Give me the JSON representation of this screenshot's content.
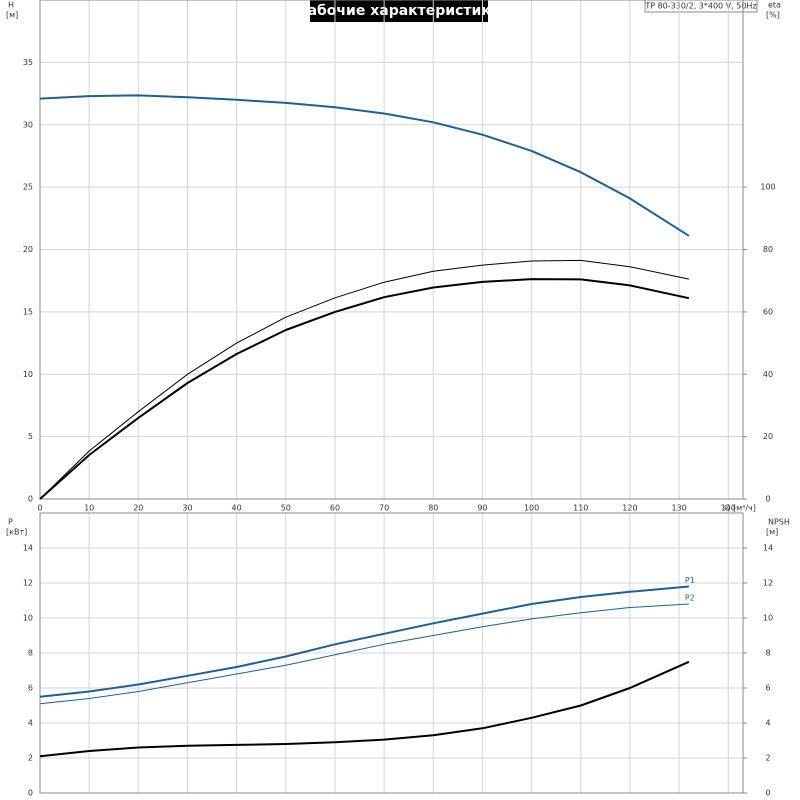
{
  "chart_data": [
    {
      "type": "line",
      "title": "Рабочие характеристики",
      "annotation": "TP 80-330/2, 3*400 V, 50Hz",
      "ylabel": "H",
      "yunit": "[м]",
      "y2label": "eta",
      "y2unit": "[%]",
      "xlabel": "Q [м³/ч]",
      "x": [
        0,
        10,
        20,
        30,
        40,
        50,
        60,
        70,
        80,
        90,
        100,
        110,
        120,
        132
      ],
      "xlim": [
        0,
        143
      ],
      "xticks": [
        0,
        10,
        20,
        30,
        40,
        50,
        60,
        70,
        80,
        90,
        100,
        110,
        120,
        130,
        140
      ],
      "ylim": [
        0,
        40
      ],
      "yticks": [
        0,
        5,
        10,
        15,
        20,
        25,
        30,
        35
      ],
      "y2lim": [
        0,
        160
      ],
      "y2ticks": [
        0,
        20,
        40,
        60,
        80,
        100
      ],
      "grid": true,
      "series": [
        {
          "color": "#1f5f96",
          "line_width": 2,
          "values": [
            32.1,
            32.3,
            32.35,
            32.2,
            32.0,
            31.75,
            31.4,
            30.9,
            30.2,
            29.2,
            27.9,
            26.2,
            24.1,
            21.1
          ]
        },
        {
          "color": "#000000",
          "line_width": 1,
          "axis": "y2",
          "values": [
            0,
            15.4,
            28,
            40,
            50,
            58.3,
            64.5,
            69.5,
            73,
            75,
            76.3,
            76.5,
            74.5,
            70.5
          ]
        },
        {
          "color": "#000000",
          "line_width": 2,
          "axis": "y2",
          "values": [
            0,
            14.1,
            26,
            37.2,
            46.5,
            54.2,
            60,
            64.7,
            67.8,
            69.6,
            70.5,
            70.4,
            68.5,
            64.4
          ]
        }
      ]
    },
    {
      "type": "line",
      "ylabel": "P",
      "yunit": "[кВт]",
      "y2label": "NPSH",
      "y2unit": "[м]",
      "x": [
        0,
        10,
        20,
        30,
        40,
        50,
        60,
        70,
        80,
        90,
        100,
        110,
        120,
        132
      ],
      "xlim": [
        0,
        143
      ],
      "xticks": [
        0,
        10,
        20,
        30,
        40,
        50,
        60,
        70,
        80,
        90,
        100,
        110,
        120,
        130,
        140
      ],
      "ylim": [
        0,
        16
      ],
      "yticks": [
        0,
        2,
        4,
        6,
        8,
        10,
        12,
        14
      ],
      "y2lim": [
        0,
        16
      ],
      "y2ticks": [
        0,
        2,
        4,
        6,
        8,
        10,
        12,
        14
      ],
      "grid": true,
      "series": [
        {
          "name": "P1",
          "color": "#1f5f96",
          "line_width": 2,
          "values": [
            5.5,
            5.8,
            6.2,
            6.7,
            7.2,
            7.8,
            8.5,
            9.1,
            9.7,
            10.25,
            10.8,
            11.2,
            11.5,
            11.8
          ]
        },
        {
          "name": "P2",
          "color": "#1f5f96",
          "line_width": 1,
          "values": [
            5.1,
            5.4,
            5.8,
            6.3,
            6.8,
            7.3,
            7.9,
            8.5,
            9.0,
            9.5,
            9.95,
            10.3,
            10.6,
            10.8
          ]
        },
        {
          "color": "#000000",
          "line_width": 2,
          "axis": "y2",
          "values": [
            2.1,
            2.4,
            2.6,
            2.7,
            2.75,
            2.8,
            2.9,
            3.05,
            3.3,
            3.7,
            4.3,
            5.0,
            6.0,
            7.5
          ]
        }
      ]
    }
  ]
}
